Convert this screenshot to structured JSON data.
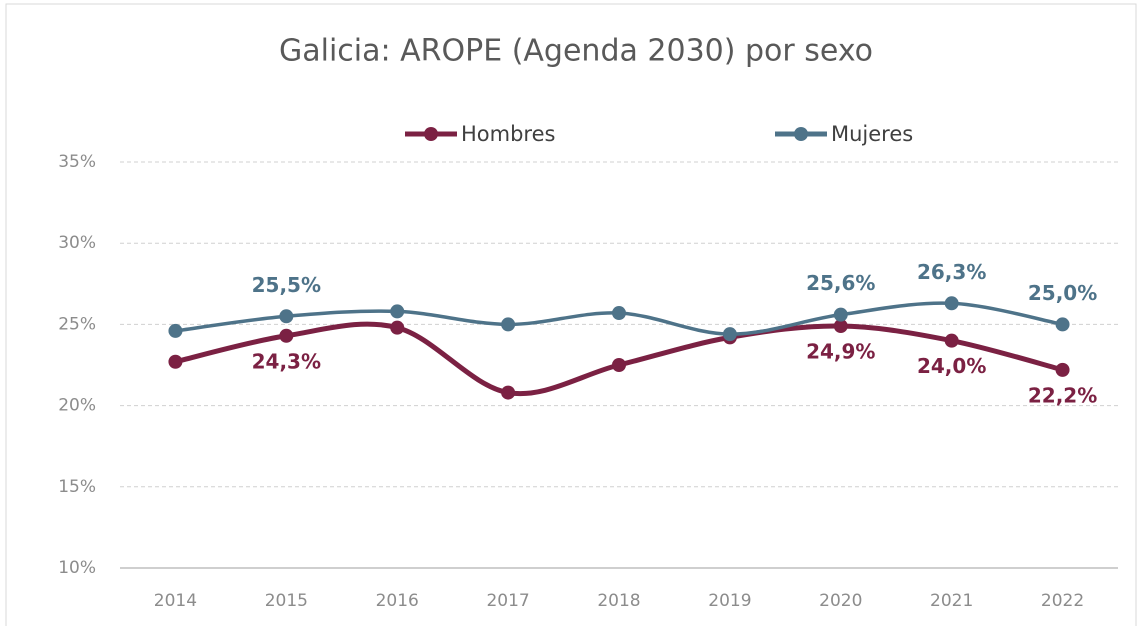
{
  "chart_data": {
    "type": "line",
    "title": "Galicia: AROPE (Agenda 2030) por sexo",
    "categories": [
      "2014",
      "2015",
      "2016",
      "2017",
      "2018",
      "2019",
      "2020",
      "2021",
      "2022"
    ],
    "series": [
      {
        "name": "Hombres",
        "color": "#7b2143",
        "values": [
          22.7,
          24.3,
          24.8,
          20.8,
          22.5,
          24.2,
          24.9,
          24.0,
          22.2
        ],
        "value_labels": [
          null,
          "24,3%",
          null,
          null,
          null,
          null,
          "24,9%",
          "24,0%",
          "22,2%"
        ]
      },
      {
        "name": "Mujeres",
        "color": "#4e7389",
        "values": [
          24.6,
          25.5,
          25.8,
          25.0,
          25.7,
          24.4,
          25.6,
          26.3,
          25.0
        ],
        "value_labels": [
          null,
          "25,5%",
          null,
          null,
          null,
          null,
          "25,6%",
          "26,3%",
          "25,0%"
        ]
      }
    ],
    "ylim": [
      10,
      35
    ],
    "yticks": [
      {
        "value": 10,
        "label": "10%"
      },
      {
        "value": 15,
        "label": "15%"
      },
      {
        "value": 20,
        "label": "20%"
      },
      {
        "value": 25,
        "label": "25%"
      },
      {
        "value": 30,
        "label": "30%"
      },
      {
        "value": 35,
        "label": "35%"
      }
    ],
    "grid": true,
    "smooth": true,
    "legend": "top"
  }
}
